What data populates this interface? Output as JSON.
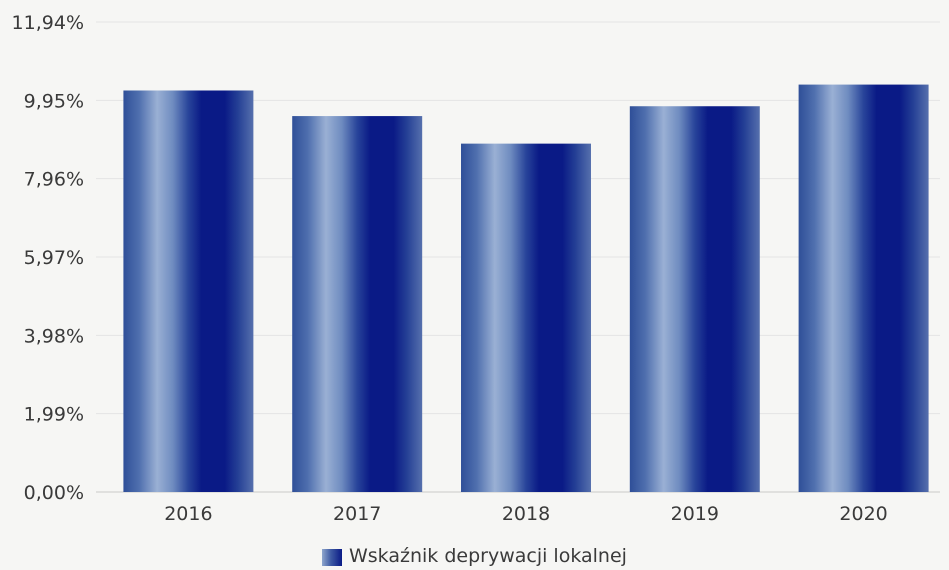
{
  "chart_data": {
    "type": "bar",
    "categories": [
      "2016",
      "2017",
      "2018",
      "2019",
      "2020"
    ],
    "series": [
      {
        "name": "Wskaźnik deprywacji lokalnej",
        "values": [
          10.2,
          9.55,
          8.85,
          9.8,
          10.35
        ]
      }
    ],
    "y_ticks": [
      "0,00%",
      "1,99%",
      "3,98%",
      "5,97%",
      "7,96%",
      "9,95%",
      "11,94%"
    ],
    "y_tick_values": [
      0,
      1.99,
      3.98,
      5.97,
      7.96,
      9.95,
      11.94
    ],
    "ylim": [
      0,
      11.94
    ],
    "grid": true,
    "legend_position": "bottom-center",
    "colors": {
      "bar_dark": "#0a1a86",
      "bar_mid": "#2a4a9c",
      "bar_light": "#8fa6cc",
      "axis_text": "#3a3a3a",
      "grid": "#e4e4e4",
      "background": "#f6f6f4"
    }
  }
}
